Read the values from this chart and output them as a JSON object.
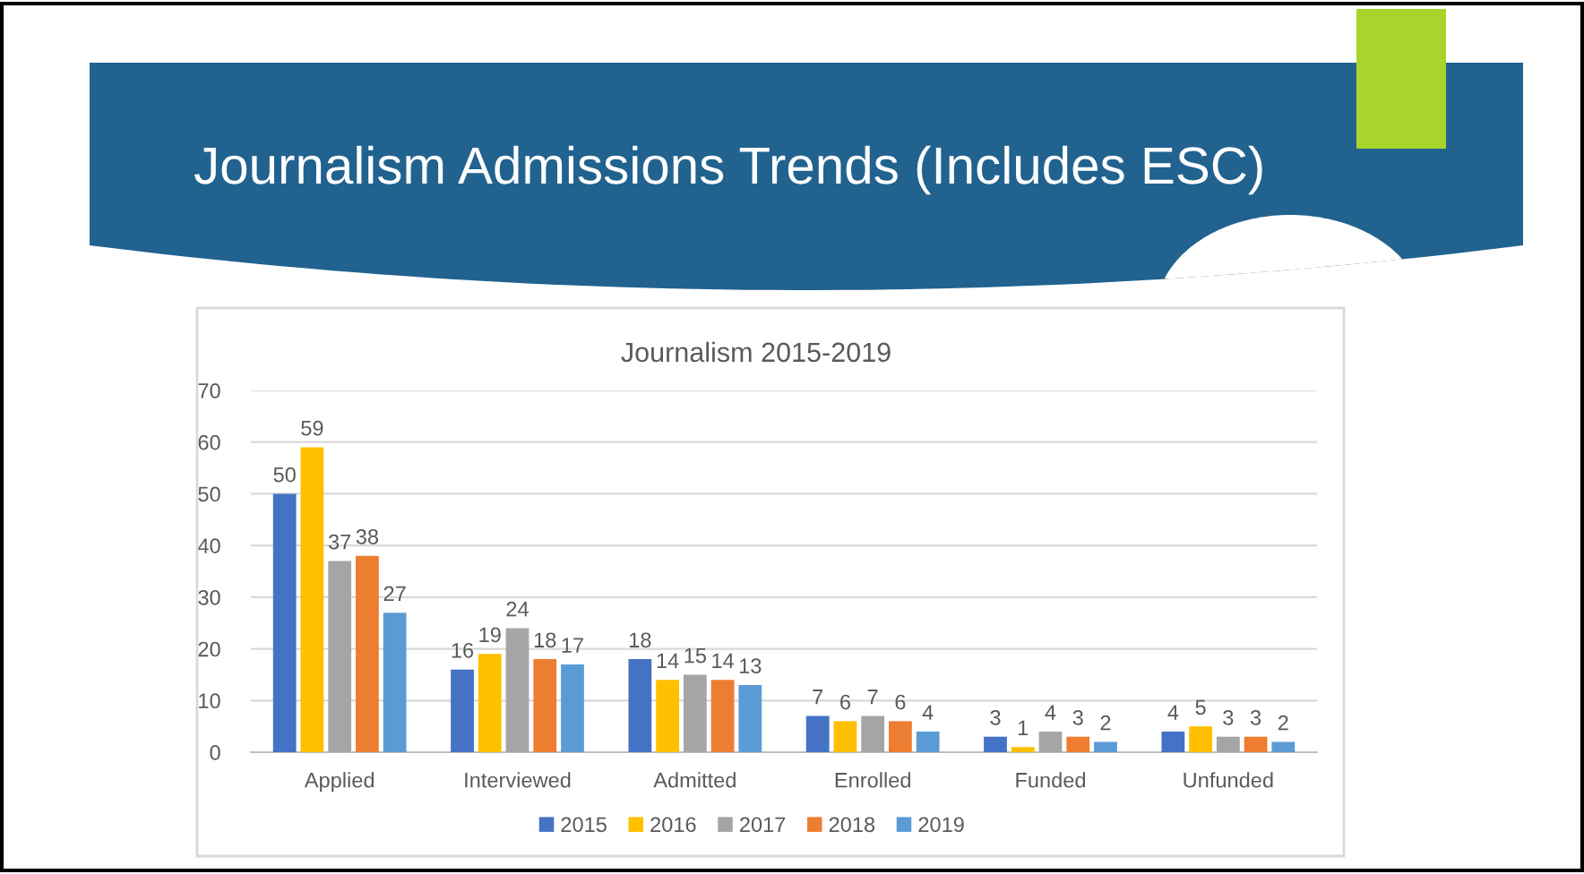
{
  "chart_data": {
    "type": "bar",
    "title": "Journalism Admissions Trends (Includes ESC)",
    "subtitle": "Journalism 2015-2019",
    "categories": [
      "Applied",
      "Interviewed",
      "Admitted",
      "Enrolled",
      "Funded",
      "Unfunded"
    ],
    "series": [
      {
        "name": "2015",
        "color": "#4472c4",
        "values": [
          50,
          16,
          18,
          7,
          3,
          4
        ]
      },
      {
        "name": "2016",
        "color": "#ffc000",
        "values": [
          59,
          19,
          14,
          6,
          1,
          5
        ]
      },
      {
        "name": "2017",
        "color": "#a5a5a5",
        "values": [
          37,
          24,
          15,
          7,
          4,
          3
        ]
      },
      {
        "name": "2018",
        "color": "#ed7d31",
        "values": [
          38,
          18,
          14,
          6,
          3,
          3
        ]
      },
      {
        "name": "2019",
        "color": "#5b9bd5",
        "values": [
          27,
          17,
          13,
          4,
          2,
          2
        ]
      }
    ],
    "ylim": [
      0,
      70
    ],
    "yticks": [
      0,
      10,
      20,
      30,
      40,
      50,
      60,
      70
    ],
    "grid": "y",
    "legend": "bottom",
    "data_labels": true
  }
}
